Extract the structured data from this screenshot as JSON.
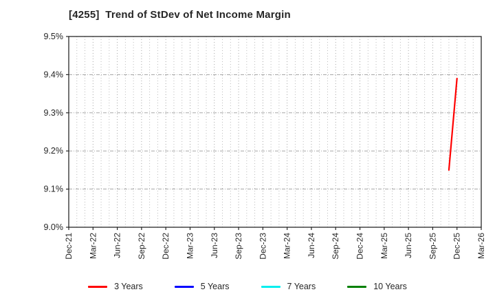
{
  "title": "[4255]  Trend of StDev of Net Income Margin",
  "chart_data": {
    "type": "line",
    "title": "[4255]  Trend of StDev of Net Income Margin",
    "xlabel": "",
    "ylabel": "",
    "ylim": [
      9.0,
      9.5
    ],
    "y_tick_labels": [
      "9.0%",
      "9.1%",
      "9.2%",
      "9.3%",
      "9.4%",
      "9.5%"
    ],
    "x_tick_labels": [
      "Dec-21",
      "Mar-22",
      "Jun-22",
      "Sep-22",
      "Dec-22",
      "Mar-23",
      "Jun-23",
      "Sep-23",
      "Dec-23",
      "Mar-24",
      "Jun-24",
      "Sep-24",
      "Dec-24",
      "Mar-25",
      "Jun-25",
      "Sep-25",
      "Dec-25",
      "Mar-26"
    ],
    "x_tick_step_months": 3,
    "months_total": 51,
    "grid": "on",
    "grid_style": "vertical dotted monthly, horizontal dash-dot per 0.1%",
    "legend_position": "bottom-center",
    "series": [
      {
        "name": "3 Years",
        "color": "#ff0000",
        "points": [
          {
            "x": "Nov-25",
            "y": 9.15
          },
          {
            "x": "Dec-25",
            "y": 9.39
          }
        ]
      },
      {
        "name": "5 Years",
        "color": "#0000ff",
        "points": []
      },
      {
        "name": "7 Years",
        "color": "#00eeee",
        "points": []
      },
      {
        "name": "10 Years",
        "color": "#008000",
        "points": []
      }
    ],
    "colors": {
      "axis": "#262626",
      "grid_vertical": "#b3b3b3",
      "grid_horizontal": "#999999",
      "text": "#262626"
    }
  }
}
